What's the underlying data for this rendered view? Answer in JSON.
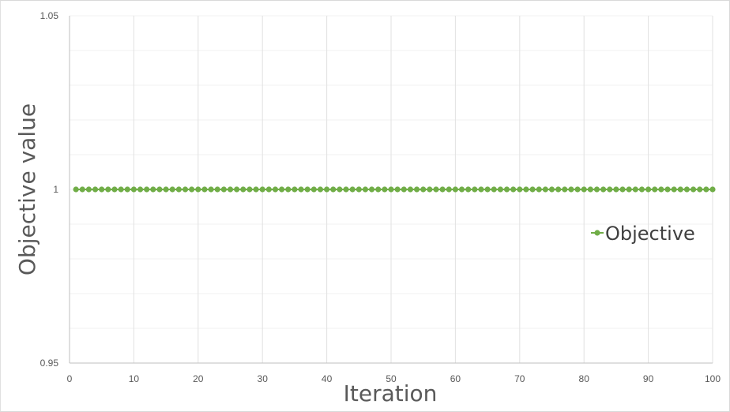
{
  "chart_data": {
    "type": "line",
    "title": "",
    "xlabel": "Iteration",
    "ylabel": "Objective value",
    "xlim": [
      0,
      100
    ],
    "ylim": [
      0.95,
      1.05
    ],
    "x_ticks": [
      0,
      10,
      20,
      30,
      40,
      50,
      60,
      70,
      80,
      90,
      100
    ],
    "x_tick_labels": [
      "0",
      "10",
      "20",
      "30",
      "40",
      "50",
      "60",
      "70",
      "80",
      "90",
      "100"
    ],
    "y_ticks": [
      0.95,
      1,
      1.05
    ],
    "y_tick_labels": [
      "0.95",
      "1",
      "1.05"
    ],
    "grid": true,
    "legend_position": "right",
    "series": [
      {
        "name": "Objective",
        "color": "#70AD47",
        "marker": "circle",
        "x": [
          1,
          2,
          3,
          4,
          5,
          6,
          7,
          8,
          9,
          10,
          11,
          12,
          13,
          14,
          15,
          16,
          17,
          18,
          19,
          20,
          21,
          22,
          23,
          24,
          25,
          26,
          27,
          28,
          29,
          30,
          31,
          32,
          33,
          34,
          35,
          36,
          37,
          38,
          39,
          40,
          41,
          42,
          43,
          44,
          45,
          46,
          47,
          48,
          49,
          50,
          51,
          52,
          53,
          54,
          55,
          56,
          57,
          58,
          59,
          60,
          61,
          62,
          63,
          64,
          65,
          66,
          67,
          68,
          69,
          70,
          71,
          72,
          73,
          74,
          75,
          76,
          77,
          78,
          79,
          80,
          81,
          82,
          83,
          84,
          85,
          86,
          87,
          88,
          89,
          90,
          91,
          92,
          93,
          94,
          95,
          96,
          97,
          98,
          99,
          100
        ],
        "values": [
          1,
          1,
          1,
          1,
          1,
          1,
          1,
          1,
          1,
          1,
          1,
          1,
          1,
          1,
          1,
          1,
          1,
          1,
          1,
          1,
          1,
          1,
          1,
          1,
          1,
          1,
          1,
          1,
          1,
          1,
          1,
          1,
          1,
          1,
          1,
          1,
          1,
          1,
          1,
          1,
          1,
          1,
          1,
          1,
          1,
          1,
          1,
          1,
          1,
          1,
          1,
          1,
          1,
          1,
          1,
          1,
          1,
          1,
          1,
          1,
          1,
          1,
          1,
          1,
          1,
          1,
          1,
          1,
          1,
          1,
          1,
          1,
          1,
          1,
          1,
          1,
          1,
          1,
          1,
          1,
          1,
          1,
          1,
          1,
          1,
          1,
          1,
          1,
          1,
          1,
          1,
          1,
          1,
          1,
          1,
          1,
          1,
          1,
          1,
          1
        ]
      }
    ]
  }
}
